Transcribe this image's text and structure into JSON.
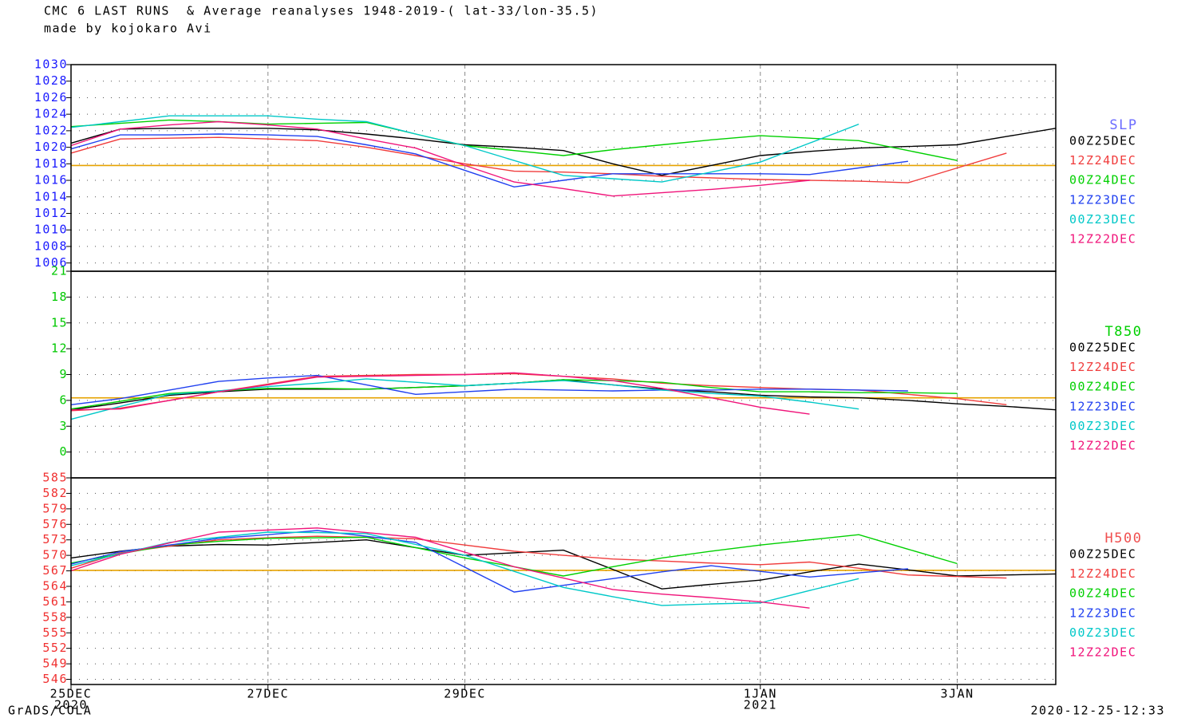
{
  "title": "CMC 6 LAST RUNS  & Average reanalyses 1948-2019-( lat-33/lon-35.5)",
  "subtitle": "made by kojokaro Avi",
  "credit": "GrADS/COLA",
  "timestamp": "2020-12-25-12:33",
  "chart_data": [
    {
      "type": "line",
      "label": "SLP",
      "label_color": "#6b6bff",
      "tick_color": "#1a1aff",
      "x": [
        0,
        0.5,
        1,
        1.5,
        2,
        2.5,
        3,
        3.5,
        4,
        4.5,
        5,
        5.5,
        6,
        6.5,
        7,
        7.5,
        8,
        8.5,
        9,
        9.5,
        10
      ],
      "xlim": [
        0,
        10
      ],
      "ylim": [
        1005,
        1030
      ],
      "yticks": [
        1006,
        1008,
        1010,
        1012,
        1014,
        1016,
        1018,
        1020,
        1022,
        1024,
        1026,
        1028,
        1030
      ],
      "average": 1017.8,
      "average_color": "#e6a200",
      "grid": true,
      "series": [
        {
          "name": "00Z25DEC",
          "color": "#000000",
          "values": [
            1020.5,
            1022.2,
            1022.3,
            1022.3,
            1022.3,
            1022.1,
            1021.6,
            1021,
            1020.3,
            1020,
            1019.6,
            1018,
            1016.6,
            1017.8,
            1019,
            1019.5,
            1019.9,
            1020.1,
            1020.3,
            1021.3,
            1022.3
          ]
        },
        {
          "name": "12Z24DEC",
          "color": "#f03c3c",
          "values": [
            1019.3,
            1021,
            1021.1,
            1021.2,
            1021,
            1020.8,
            1020,
            1019,
            1018,
            1017.1,
            1017,
            1016.8,
            1016.5,
            1016.3,
            1016.1,
            1016,
            1015.9,
            1015.7,
            1017.5,
            1019.3,
            null
          ]
        },
        {
          "name": "00Z24DEC",
          "color": "#00d000",
          "values": [
            1022.5,
            1022.9,
            1023.3,
            1023.1,
            1022.8,
            1022.9,
            1023,
            1021.6,
            1020.2,
            1019.6,
            1019,
            1019.7,
            1020.3,
            1020.9,
            1021.4,
            1021.1,
            1020.8,
            1019.6,
            1018.4,
            null,
            null
          ]
        },
        {
          "name": "12Z23DEC",
          "color": "#2040f0",
          "values": [
            1019.8,
            1021.5,
            1021.5,
            1021.6,
            1021.5,
            1021.3,
            1020.3,
            1019.2,
            1017.2,
            1015.2,
            1016,
            1016.8,
            1016.8,
            1016.8,
            1016.8,
            1016.7,
            1017.5,
            1018.3,
            null,
            null,
            null
          ]
        },
        {
          "name": "00Z23DEC",
          "color": "#00c8c8",
          "values": [
            1022.4,
            1023.1,
            1023.8,
            1023.8,
            1023.8,
            1023.4,
            1023.1,
            1021.6,
            1020.2,
            1018.4,
            1016.6,
            1016.2,
            1015.8,
            1017,
            1018.2,
            1020.5,
            1022.8,
            null,
            null,
            null,
            null
          ]
        },
        {
          "name": "12Z22DEC",
          "color": "#f0147a",
          "values": [
            1020.2,
            1022.2,
            1022.7,
            1023.1,
            1022.7,
            1022.2,
            1021,
            1019.9,
            1017.8,
            1015.8,
            1015,
            1014.1,
            1014.5,
            1014.9,
            1015.4,
            1016,
            null,
            null,
            null,
            null,
            null
          ]
        }
      ]
    },
    {
      "type": "line",
      "label": "T850",
      "label_color": "#00d000",
      "tick_color": "#00c800",
      "x": [
        0,
        0.5,
        1,
        1.5,
        2,
        2.5,
        3,
        3.5,
        4,
        4.5,
        5,
        5.5,
        6,
        6.5,
        7,
        7.5,
        8,
        8.5,
        9,
        9.5,
        10
      ],
      "xlim": [
        0,
        10
      ],
      "ylim": [
        -3,
        21
      ],
      "yticks": [
        0,
        3,
        6,
        9,
        12,
        15,
        18,
        21
      ],
      "average": 6.3,
      "average_color": "#e6a200",
      "grid": true,
      "series": [
        {
          "name": "00Z25DEC",
          "color": "#000000",
          "values": [
            4.9,
            5.7,
            6.6,
            7,
            7.3,
            7.3,
            7.3,
            7.5,
            7.7,
            8,
            8.4,
            7.8,
            7.3,
            7,
            6.6,
            6.4,
            6.3,
            6,
            5.6,
            5.3,
            4.9
          ]
        },
        {
          "name": "12Z24DEC",
          "color": "#f03c3c",
          "values": [
            4.8,
            5.1,
            6,
            7,
            7.9,
            8.8,
            8.9,
            9,
            9,
            9.1,
            8.8,
            8.5,
            8,
            7.7,
            7.5,
            7.3,
            7.2,
            6.7,
            6.2,
            5.5,
            null
          ]
        },
        {
          "name": "00Z24DEC",
          "color": "#00d000",
          "values": [
            5,
            5.9,
            6.8,
            7.1,
            7.4,
            7.4,
            7.3,
            7.5,
            7.7,
            8,
            8.4,
            8.3,
            8.1,
            7.5,
            7,
            7,
            6.9,
            6.9,
            6.8,
            null,
            null
          ]
        },
        {
          "name": "12Z23DEC",
          "color": "#2040f0",
          "values": [
            5.5,
            6.2,
            7.2,
            8.2,
            8.6,
            8.9,
            7.8,
            6.7,
            7,
            7.3,
            7.2,
            7.1,
            7.2,
            7.2,
            7.3,
            7.3,
            7.2,
            7.1,
            null,
            null,
            null
          ]
        },
        {
          "name": "00Z23DEC",
          "color": "#00c8c8",
          "values": [
            3.8,
            5.3,
            6.7,
            7.1,
            7.6,
            8,
            8.5,
            8.1,
            7.7,
            8,
            8.3,
            7.8,
            7.2,
            6.8,
            6.5,
            5.8,
            5,
            null,
            null,
            null,
            null
          ]
        },
        {
          "name": "12Z22DEC",
          "color": "#f0147a",
          "values": [
            4.9,
            5,
            6,
            7,
            7.8,
            8.7,
            8.8,
            8.9,
            9,
            9.2,
            8.8,
            8.3,
            7.4,
            6.3,
            5.2,
            4.4,
            null,
            null,
            null,
            null,
            null
          ]
        }
      ]
    },
    {
      "type": "line",
      "label": "H500",
      "label_color": "#f05050",
      "tick_color": "#f03030",
      "x": [
        0,
        0.5,
        1,
        1.5,
        2,
        2.5,
        3,
        3.5,
        4,
        4.5,
        5,
        5.5,
        6,
        6.5,
        7,
        7.5,
        8,
        8.5,
        9,
        9.5,
        10
      ],
      "xlim": [
        0,
        10
      ],
      "ylim": [
        545,
        585
      ],
      "yticks": [
        546,
        549,
        552,
        555,
        558,
        561,
        564,
        567,
        570,
        573,
        576,
        579,
        582,
        585
      ],
      "xticks": [
        {
          "value": 0,
          "label": "25DEC"
        },
        {
          "value": 2,
          "label": "27DEC"
        },
        {
          "value": 4,
          "label": "29DEC"
        },
        {
          "value": 7,
          "label": "1JAN"
        },
        {
          "value": 9,
          "label": "3JAN"
        }
      ],
      "xtick_years": [
        {
          "value": 0,
          "label": "2020"
        },
        {
          "value": 7,
          "label": "2021"
        }
      ],
      "average": 567.1,
      "average_color": "#e6a200",
      "grid": true,
      "series": [
        {
          "name": "00Z25DEC",
          "color": "#000000",
          "values": [
            569.5,
            570.8,
            571.8,
            572.1,
            572,
            572.5,
            573,
            571.5,
            570,
            570.5,
            571,
            567.3,
            563.5,
            564.4,
            565.2,
            566.8,
            568.3,
            567.2,
            566,
            566.2,
            566.4
          ]
        },
        {
          "name": "12Z24DEC",
          "color": "#f03c3c",
          "values": [
            567.5,
            570.5,
            571.8,
            573,
            573.4,
            573.7,
            573.5,
            573.2,
            572,
            570.8,
            570,
            569.3,
            568.9,
            568.5,
            568.2,
            568.7,
            567.5,
            566.2,
            565.9,
            565.6,
            null
          ]
        },
        {
          "name": "00Z24DEC",
          "color": "#00d000",
          "values": [
            568.5,
            570.3,
            572,
            572.7,
            573.3,
            573.4,
            573.5,
            571.5,
            569.5,
            567.8,
            566,
            567.8,
            569.5,
            570.8,
            572,
            573,
            574,
            571.2,
            568.4,
            null,
            null
          ]
        },
        {
          "name": "12Z23DEC",
          "color": "#2040f0",
          "values": [
            568.3,
            570.7,
            572,
            573.3,
            574,
            574.8,
            573.7,
            572.5,
            567.7,
            562.9,
            564.2,
            565.5,
            566.8,
            568,
            566.9,
            565.8,
            566.6,
            567.4,
            null,
            null,
            null
          ]
        },
        {
          "name": "00Z23DEC",
          "color": "#00c8c8",
          "values": [
            568,
            570.3,
            572.5,
            573.5,
            574.5,
            574.4,
            574.2,
            572.1,
            570,
            566.9,
            563.8,
            562,
            560.3,
            560.6,
            560.8,
            563.2,
            565.5,
            null,
            null,
            null,
            null
          ]
        },
        {
          "name": "12Z22DEC",
          "color": "#f0147a",
          "values": [
            567,
            570.2,
            572.4,
            574.5,
            574.9,
            575.3,
            574.4,
            573.5,
            570.6,
            567.8,
            565.6,
            563.4,
            562.5,
            561.8,
            561,
            559.8,
            null,
            null,
            null,
            null,
            null
          ]
        }
      ]
    }
  ]
}
